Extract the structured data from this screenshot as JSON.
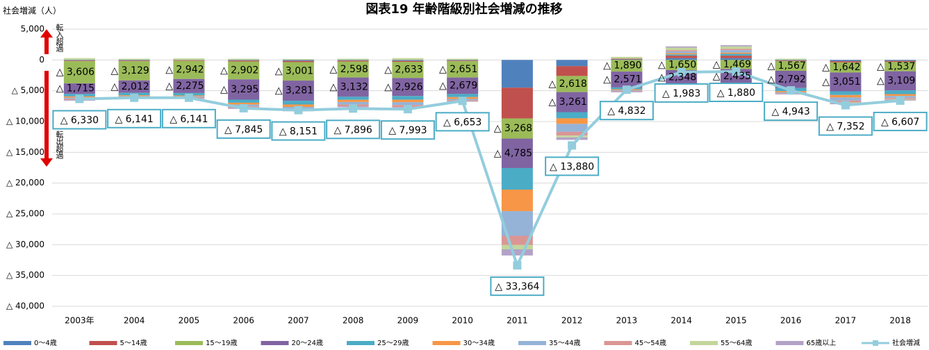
{
  "chart_data": {
    "type": "bar",
    "title": "図表19  年齢階級別社会増減の推移",
    "y_label": "社会増減（人）",
    "annotations": [
      "転入超過",
      "転出超過"
    ],
    "categories": [
      "2003年",
      "2004",
      "2005",
      "2006",
      "2007",
      "2008",
      "2009",
      "2010",
      "2011",
      "2012",
      "2013",
      "2014",
      "2015",
      "2016",
      "2017",
      "2018"
    ],
    "ylim": [
      -40000,
      5000
    ],
    "yticks": [
      {
        "value": -40000,
        "label": "△ 40,000"
      },
      {
        "value": -35000,
        "label": "△ 35,000"
      },
      {
        "value": -30000,
        "label": "△ 30,000"
      },
      {
        "value": -25000,
        "label": "△ 25,000"
      },
      {
        "value": -20000,
        "label": "△ 20,000"
      },
      {
        "value": -15000,
        "label": "△ 15,000"
      },
      {
        "value": -10000,
        "label": "△ 10,000"
      },
      {
        "value": -5000,
        "label": "△ 5,000"
      },
      0,
      {
        "value": 5000,
        "label": "5,000"
      }
    ],
    "grid": true,
    "series": [
      {
        "name": "0～4歳",
        "color": "#4f81bd",
        "values": [
          -100,
          -100,
          -50,
          -100,
          -150,
          -100,
          -150,
          -100,
          -4500,
          -1000,
          100,
          300,
          300,
          -100,
          -200,
          -150
        ]
      },
      {
        "name": "5～14歳",
        "color": "#c0504d",
        "values": [
          -100,
          -100,
          -100,
          -150,
          -200,
          -150,
          -150,
          -100,
          -5000,
          -1600,
          100,
          400,
          400,
          -100,
          -200,
          -150
        ]
      },
      {
        "name": "15～19歳",
        "color": "#9bbb59",
        "values": [
          -3606,
          -3129,
          -2942,
          -2902,
          -3001,
          -2598,
          -2633,
          -2651,
          -3268,
          -2618,
          -1890,
          -1650,
          -1469,
          -1567,
          -1642,
          -1537
        ],
        "value_labels": [
          "△ 3,606",
          "△ 3,129",
          "△ 2,942",
          "△ 2,902",
          "△ 3,001",
          "△ 2,598",
          "△ 2,633",
          "△ 2,651",
          "△ 3,268",
          "△ 2,618",
          "△ 1,890",
          "△ 1,650",
          "△ 1,469",
          "△ 1,567",
          "△ 1,642",
          "△ 1,537"
        ]
      },
      {
        "name": "20～24歳",
        "color": "#8064a2",
        "values": [
          -1715,
          -2012,
          -2275,
          -3295,
          -3281,
          -3132,
          -2926,
          -2679,
          -4785,
          -3261,
          -2571,
          -2348,
          -2435,
          -2792,
          -3051,
          -3109
        ],
        "value_labels": [
          "△ 1,715",
          "△ 2,012",
          "△ 2,275",
          "△ 3,295",
          "△ 3,281",
          "△ 3,132",
          "△ 2,926",
          "△ 2,679",
          "△ 4,785",
          "△ 3,261",
          "△ 2,571",
          "△ 2,348",
          "△ 2,435",
          "△ 2,792",
          "△ 3,051",
          "△ 3,109"
        ]
      },
      {
        "name": "25～29歳",
        "color": "#4bacc6",
        "values": [
          -400,
          -400,
          -400,
          -500,
          -600,
          -500,
          -600,
          -500,
          -3500,
          -1000,
          -300,
          200,
          300,
          -500,
          -600,
          -600
        ]
      },
      {
        "name": "30～34歳",
        "color": "#f79646",
        "values": [
          -200,
          -150,
          -150,
          -300,
          -400,
          -350,
          -400,
          -300,
          -3500,
          -900,
          -150,
          200,
          200,
          -200,
          -400,
          -300
        ]
      },
      {
        "name": "35～44歳",
        "color": "#95b3d7",
        "values": [
          -200,
          -150,
          -150,
          -300,
          -300,
          -400,
          -450,
          -200,
          -4000,
          -1300,
          -150,
          300,
          400,
          -150,
          -500,
          -300
        ]
      },
      {
        "name": "45～54歳",
        "color": "#da9694",
        "values": [
          -200,
          -150,
          -150,
          -250,
          -250,
          -300,
          -350,
          -150,
          -1500,
          -600,
          -100,
          200,
          200,
          -100,
          -300,
          -200
        ]
      },
      {
        "name": "55～64歳",
        "color": "#c3d69b",
        "values": [
          300,
          200,
          250,
          200,
          150,
          200,
          300,
          200,
          -700,
          -300,
          300,
          400,
          400,
          200,
          -100,
          -100
        ]
      },
      {
        "name": "65歳以上",
        "color": "#b3a2c7",
        "values": [
          -100,
          -100,
          -100,
          -150,
          -150,
          -150,
          -200,
          -100,
          -1000,
          -400,
          -100,
          200,
          200,
          -100,
          -200,
          -150
        ]
      },
      {
        "name": "社会増減",
        "type": "line",
        "color": "#93cddd",
        "values": [
          -6330,
          -6141,
          -6141,
          -7845,
          -8151,
          -7896,
          -7993,
          -6653,
          -33364,
          -13880,
          -4832,
          -1983,
          -1880,
          -4943,
          -7352,
          -6607
        ],
        "value_labels": [
          "△ 6,330",
          "△ 6,141",
          "△ 6,141",
          "△ 7,845",
          "△ 8,151",
          "△ 7,896",
          "△ 7,993",
          "△ 6,653",
          "△ 33,364",
          "△ 13,880",
          "△ 4,832",
          "△ 1,983",
          "△ 1,880",
          "△ 4,943",
          "△ 7,352",
          "△ 6,607"
        ]
      }
    ]
  }
}
